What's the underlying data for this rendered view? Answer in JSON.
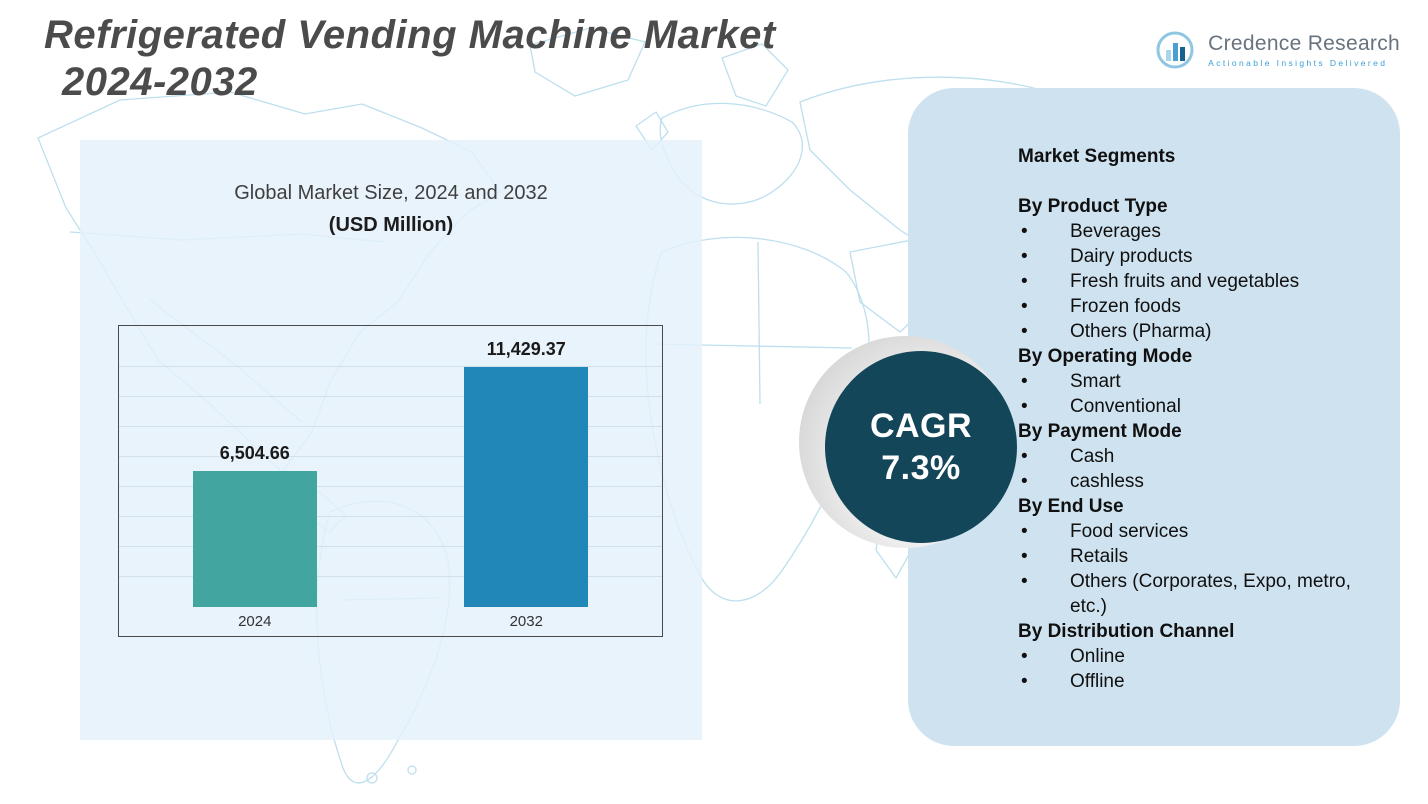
{
  "header": {
    "title_line1": "Refrigerated Vending Machine Market",
    "title_line2": "2024-2032"
  },
  "logo": {
    "name": "Credence Research",
    "tagline": "Actionable Insights Delivered"
  },
  "chart_data": {
    "type": "bar",
    "title": "Global Market Size, 2024 and 2032",
    "subtitle": "(USD Million)",
    "categories": [
      "2024",
      "2032"
    ],
    "values": [
      6504.66,
      11429.37
    ],
    "value_labels": [
      "6,504.66",
      "11,429.37"
    ],
    "bar_colors": [
      "#43a5a0",
      "#2187b8"
    ],
    "xlabel": "",
    "ylabel": "",
    "ylim": [
      0,
      13500
    ],
    "grid": true,
    "legend": "none"
  },
  "cagr": {
    "label": "CAGR",
    "value": "7.3%"
  },
  "segments": {
    "title": "Market Segments",
    "groups": [
      {
        "heading": "By Product Type",
        "items": [
          "Beverages",
          "Dairy products",
          "Fresh fruits and vegetables",
          "Frozen foods",
          "Others (Pharma)"
        ]
      },
      {
        "heading": "By Operating Mode",
        "items": [
          "Smart",
          "Conventional"
        ]
      },
      {
        "heading": "By Payment Mode",
        "items": [
          "Cash",
          "cashless"
        ]
      },
      {
        "heading": "By End Use",
        "items": [
          "Food services",
          "Retails",
          "Others (Corporates, Expo, metro, etc.)"
        ]
      },
      {
        "heading": "By Distribution Channel",
        "items": [
          "Online",
          "Offline"
        ]
      }
    ]
  },
  "colors": {
    "bar_2024": "#43a5a0",
    "bar_2032": "#2187b8",
    "cagr_circle": "#14465a",
    "right_panel_bg": "#cfe2ef",
    "left_panel_bg": "#e4f1fa",
    "title_text": "#4b4b4b",
    "map_line": "#b6dcec"
  }
}
